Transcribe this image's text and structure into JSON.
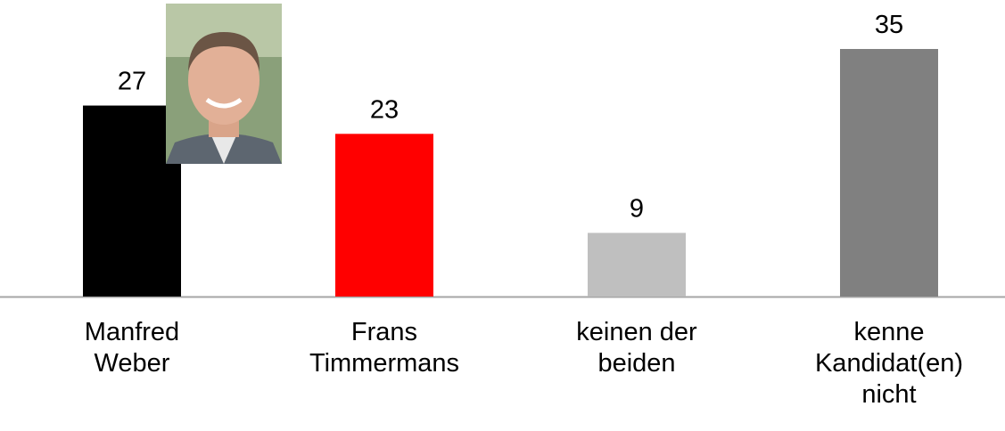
{
  "chart_data": {
    "type": "bar",
    "categories": [
      "Manfred Weber",
      "Frans Timmermans",
      "keinen der beiden",
      "kenne Kandidat(en) nicht"
    ],
    "values": [
      27,
      23,
      9,
      35
    ],
    "colors": [
      "#000000",
      "#ff0000",
      "#bfbfbf",
      "#808080"
    ]
  }
}
